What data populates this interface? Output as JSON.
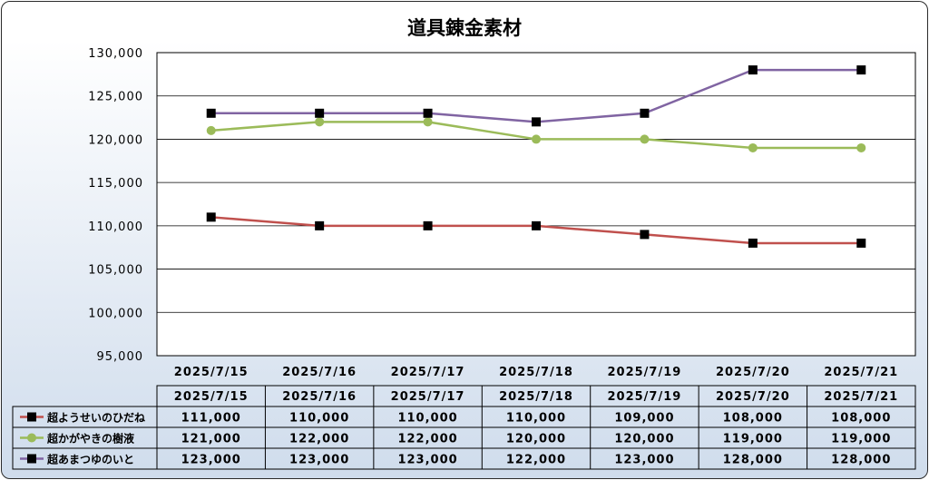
{
  "chart_data": {
    "type": "line",
    "title": "道具錬金素材",
    "categories": [
      "2025/7/15",
      "2025/7/16",
      "2025/7/17",
      "2025/7/18",
      "2025/7/19",
      "2025/7/20",
      "2025/7/21"
    ],
    "ylim": [
      95000,
      130000
    ],
    "yticks": [
      "95,000",
      "100,000",
      "105,000",
      "110,000",
      "115,000",
      "120,000",
      "125,000",
      "130,000"
    ],
    "grid": true,
    "legend": "data-table",
    "series": [
      {
        "name": "超ようせいのひだね",
        "values": [
          111000,
          110000,
          110000,
          110000,
          109000,
          108000,
          108000
        ],
        "labels": [
          "111,000",
          "110,000",
          "110,000",
          "110,000",
          "109,000",
          "108,000",
          "108,000"
        ],
        "color": "#c0504d",
        "marker": "square"
      },
      {
        "name": "超かがやきの樹液",
        "values": [
          121000,
          122000,
          122000,
          120000,
          120000,
          119000,
          119000
        ],
        "labels": [
          "121,000",
          "122,000",
          "122,000",
          "120,000",
          "120,000",
          "119,000",
          "119,000"
        ],
        "color": "#9bbb59",
        "marker": "circle"
      },
      {
        "name": "超あまつゆのいと",
        "values": [
          123000,
          123000,
          123000,
          122000,
          123000,
          128000,
          128000
        ],
        "labels": [
          "123,000",
          "123,000",
          "123,000",
          "122,000",
          "123,000",
          "128,000",
          "128,000"
        ],
        "color": "#8064a2",
        "marker": "square"
      }
    ]
  }
}
